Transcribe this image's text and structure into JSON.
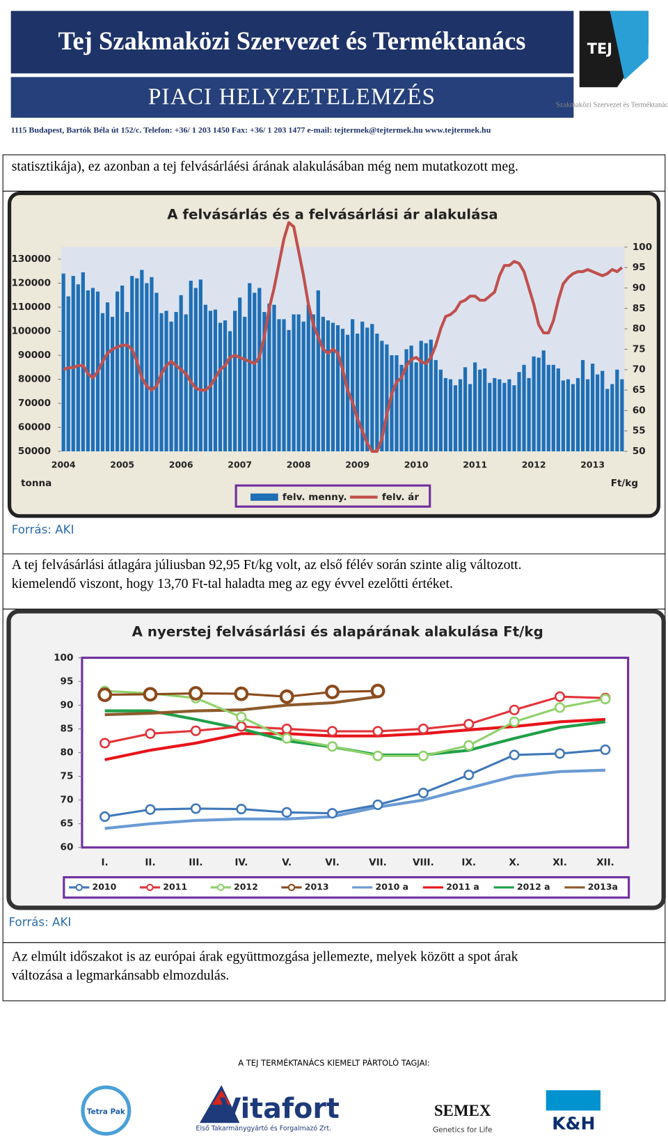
{
  "header": {
    "title": "Tej Szakmaközi Szervezet és Terméktanács",
    "subtitle": "PIACI HELYZETELEMZÉS",
    "logo_text": "TEJ",
    "logo_caption": "Szakmaközi Szervezet és Terméktanács",
    "address": "1115 Budapest, Bartók Béla út 152/c. Telefon: +36/ 1 203 1450 Fax: +36/ 1 203 1477 e-mail: tejtermek@tejtermek.hu www.tejtermek.hu"
  },
  "paragraphs": [
    "statisztikája), ez azonban a tej felvásárláési árának alakulásában még nem mutatkozott meg.",
    "A tej felvásárlási átlagára júliusban 92,95 Ft/kg volt, az első félév során szinte alig változott.",
    "kiemelendő viszont, hogy 13,70 Ft-tal haladta meg az egy évvel ezelőtti értéket.",
    "Az elmúlt időszakot is  az európai  árak  együttmozgása jellemezte, melyek között a spot árak",
    "változása a legmarkánsabb elmozdulás."
  ],
  "sources": [
    "Forrás: AKI",
    "Forrás: AKI"
  ],
  "footer": {
    "heading": "A TEJ TERMÉKTANÁCS KIEMELT PÁRTOLÓ TAGJAI:",
    "logos": [
      "Tetra Pak",
      "Vitafort",
      "Első Takarmánygyártó és Forgalmazó Zrt.",
      "SEMEX",
      "Genetics for Life",
      "K&H"
    ]
  },
  "chart_data": [
    {
      "type": "bar",
      "title": "A felvásárlás és a felvásárlási ár alakulása",
      "y_label": "tonna",
      "y2_label": "Ft/kg",
      "categories": [
        "2004",
        null,
        null,
        null,
        null,
        null,
        null,
        null,
        null,
        null,
        null,
        null,
        "2005",
        null,
        null,
        null,
        null,
        null,
        null,
        null,
        null,
        null,
        null,
        null,
        "2006",
        null,
        null,
        null,
        null,
        null,
        null,
        null,
        null,
        null,
        null,
        null,
        "2007",
        null,
        null,
        null,
        null,
        null,
        null,
        null,
        null,
        null,
        null,
        null,
        "2008",
        null,
        null,
        null,
        null,
        null,
        null,
        null,
        null,
        null,
        null,
        null,
        "2009",
        null,
        null,
        null,
        null,
        null,
        null,
        null,
        null,
        null,
        null,
        null,
        "2010",
        null,
        null,
        null,
        null,
        null,
        null,
        null,
        null,
        null,
        null,
        null,
        "2011",
        null,
        null,
        null,
        null,
        null,
        null,
        null,
        null,
        null,
        null,
        null,
        "2012",
        null,
        null,
        null,
        null,
        null,
        null,
        null,
        null,
        null,
        null,
        null,
        "2013",
        null,
        null,
        null,
        null,
        null,
        null
      ],
      "series": [
        {
          "name": "felv. menny.",
          "color": "#1f6fb5",
          "type": "bar",
          "values": [
            124000,
            114500,
            123000,
            119500,
            124500,
            117000,
            118000,
            116500,
            107500,
            112000,
            106000,
            116500,
            119000,
            108000,
            123000,
            122000,
            125500,
            120000,
            122500,
            116000,
            107500,
            108500,
            104000,
            108000,
            115000,
            107000,
            121000,
            118000,
            121500,
            111000,
            108500,
            109000,
            103500,
            104500,
            100000,
            108500,
            114000,
            106000,
            120000,
            116000,
            118000,
            108000,
            111500,
            111000,
            105000,
            105000,
            100500,
            107000,
            107000,
            104000,
            111000,
            107000,
            117000,
            106000,
            104500,
            103500,
            102500,
            101000,
            98500,
            105000,
            99000,
            104000,
            101500,
            103000,
            99000,
            96000,
            94500,
            90000,
            90000,
            86000,
            92500,
            94000,
            87000,
            96000,
            95000,
            96500,
            88000,
            84000,
            80500,
            80000,
            77500,
            80000,
            85000,
            78000,
            87000,
            84000,
            84500,
            78500,
            80500,
            80000,
            78500,
            80000,
            77500,
            83000,
            86000,
            80500,
            89500,
            89000,
            92000,
            86000,
            86000,
            84500,
            79500,
            80000,
            78000,
            80500,
            88000,
            80000,
            86500,
            82000,
            83500,
            76000,
            78000,
            84000,
            80000
          ]
        },
        {
          "name": "felv. ár",
          "color": "#c0504d",
          "type": "line",
          "axis": "y2",
          "values": [
            70,
            70.5,
            70.5,
            71,
            71,
            69,
            68,
            69.5,
            72,
            74,
            75,
            75.5,
            76,
            76,
            75,
            72,
            68,
            66,
            65,
            66,
            69,
            71,
            72,
            71,
            70,
            69,
            67,
            65.5,
            65,
            65,
            66,
            68,
            70,
            71,
            73,
            73.5,
            73,
            72.5,
            72,
            71.5,
            73,
            78,
            85,
            90,
            96,
            102,
            106,
            105,
            99,
            93,
            86,
            81,
            78,
            75,
            74,
            75,
            74,
            70,
            65,
            62,
            58,
            55,
            52,
            50,
            50,
            53,
            59,
            64,
            67,
            68,
            71,
            72.5,
            73,
            72,
            71.5,
            73,
            76,
            80,
            83,
            83.5,
            84.5,
            86.5,
            87,
            88,
            88,
            87,
            87,
            88,
            89,
            93,
            95.5,
            95.5,
            96.5,
            96,
            94,
            90,
            86,
            81,
            79,
            79,
            82,
            87,
            91,
            92.5,
            93.5,
            94,
            94,
            94.5,
            94,
            93.5,
            93,
            93.5,
            94.5,
            94,
            95
          ]
        }
      ],
      "ylim": [
        50000,
        135000
      ],
      "yticks": [
        50000,
        60000,
        70000,
        80000,
        90000,
        100000,
        110000,
        120000,
        130000
      ],
      "y2lim": [
        50,
        100
      ],
      "y2ticks": [
        50,
        55,
        60,
        65,
        70,
        75,
        80,
        85,
        90,
        95,
        100
      ],
      "grid": false,
      "legend": "bottom"
    },
    {
      "type": "line",
      "title": "A nyerstej felvásárlási és  alapárának alakulása Ft/kg",
      "categories": [
        "I.",
        "II.",
        "III.",
        "IV.",
        "V.",
        "VI.",
        "VII.",
        "VIII.",
        "IX.",
        "X.",
        "XI.",
        "XII."
      ],
      "series": [
        {
          "name": "2010",
          "color": "#3f78b8",
          "marker": "circle",
          "values": [
            66.5,
            68,
            68.2,
            68.1,
            67.4,
            67.2,
            69,
            71.5,
            75.3,
            79.5,
            79.8,
            80.6
          ]
        },
        {
          "name": "2011",
          "color": "#e2343a",
          "marker": "circle",
          "values": [
            82,
            84,
            84.6,
            85.5,
            85,
            84.5,
            84.5,
            85,
            86,
            89,
            91.8,
            91.5
          ]
        },
        {
          "name": "2012",
          "color": "#8fd16a",
          "marker": "circle",
          "values": [
            93,
            92.5,
            91.5,
            87.5,
            83,
            81.3,
            79.3,
            79.3,
            81.5,
            86.5,
            89.5,
            91.3
          ]
        },
        {
          "name": "2013",
          "color": "#8b4a1c",
          "marker": "circle",
          "values": [
            92.2,
            92.3,
            92.5,
            92.4,
            91.8,
            92.8,
            93,
            null,
            null,
            null,
            null,
            null
          ]
        },
        {
          "name": "2010 a",
          "color": "#6a9bd4",
          "values": [
            64,
            65,
            65.7,
            66,
            66,
            66.5,
            68.5,
            70,
            72.5,
            75,
            76,
            76.3
          ]
        },
        {
          "name": "2011 a",
          "color": "#e8141b",
          "values": [
            78.5,
            80.5,
            82,
            84,
            84,
            83.5,
            83.5,
            84,
            84.8,
            85.5,
            86.5,
            87
          ]
        },
        {
          "name": "2012 a",
          "color": "#1fa048",
          "values": [
            88.8,
            88.8,
            87,
            85,
            82.5,
            81.2,
            79.5,
            79.5,
            80.5,
            83,
            85.3,
            86.5
          ]
        },
        {
          "name": "2013a",
          "color": "#8c5a2b",
          "values": [
            88,
            88.3,
            88.8,
            89,
            90,
            90.5,
            91.8,
            null,
            null,
            null,
            null,
            null
          ]
        }
      ],
      "ylim": [
        60,
        100
      ],
      "yticks": [
        60,
        65,
        70,
        75,
        80,
        85,
        90,
        95,
        100
      ],
      "grid": false,
      "legend": "bottom"
    }
  ]
}
